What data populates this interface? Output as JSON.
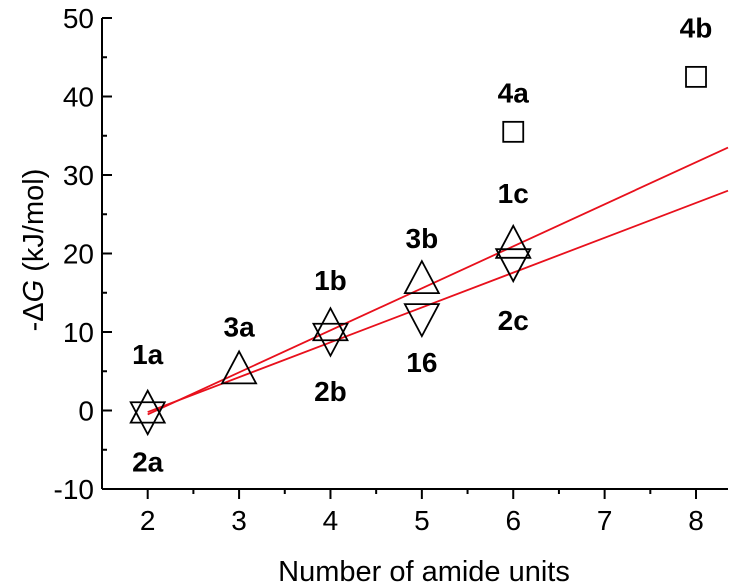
{
  "chart_data": {
    "type": "scatter",
    "title": "",
    "xlabel": "Number of amide units",
    "ylabel_prefix": "-Δ",
    "ylabel_var": "G",
    "ylabel_suffix": " (kJ/mol)",
    "xlim": [
      1.5,
      8.35
    ],
    "ylim": [
      -10,
      50
    ],
    "xticks": [
      2,
      3,
      4,
      5,
      6,
      7,
      8
    ],
    "xtick_labels": [
      "2",
      "3",
      "4",
      "5",
      "6",
      "7",
      "8"
    ],
    "yticks": [
      -10,
      0,
      10,
      20,
      30,
      40,
      50
    ],
    "ytick_labels": [
      "-10",
      "0",
      "10",
      "20",
      "30",
      "40",
      "50"
    ],
    "grid": false,
    "series": [
      {
        "marker": "triangle-up",
        "points": [
          {
            "x": 2,
            "y": 0.0
          },
          {
            "x": 3,
            "y": 5.0
          },
          {
            "x": 4,
            "y": 10.5
          },
          {
            "x": 5,
            "y": 16.5
          },
          {
            "x": 6,
            "y": 21.0
          }
        ]
      },
      {
        "marker": "triangle-down",
        "points": [
          {
            "x": 2,
            "y": -0.5
          },
          {
            "x": 4,
            "y": 9.5
          },
          {
            "x": 5,
            "y": 12.0
          },
          {
            "x": 6,
            "y": 19.0
          }
        ]
      },
      {
        "marker": "square",
        "points": [
          {
            "x": 6,
            "y": 35.5
          },
          {
            "x": 8,
            "y": 42.5
          }
        ]
      }
    ],
    "fit_lines": [
      {
        "color": "#e8101c",
        "x0": 2,
        "y0": -0.5,
        "x1": 8.35,
        "y1": 33.5
      },
      {
        "color": "#e8101c",
        "x0": 2,
        "y0": -0.2,
        "x1": 8.35,
        "y1": 28.0
      }
    ],
    "annotations": [
      {
        "text": "1a",
        "x": 2,
        "y": 7.2
      },
      {
        "text": "2a",
        "x": 2,
        "y": -6.5
      },
      {
        "text": "3a",
        "x": 3,
        "y": 10.7
      },
      {
        "text": "1b",
        "x": 4,
        "y": 16.6
      },
      {
        "text": "2b",
        "x": 4,
        "y": 2.5
      },
      {
        "text": "3b",
        "x": 5,
        "y": 22.0
      },
      {
        "text": "16",
        "x": 5,
        "y": 6.2
      },
      {
        "text": "1c",
        "x": 6,
        "y": 27.7
      },
      {
        "text": "2c",
        "x": 6,
        "y": 11.5
      },
      {
        "text": "4a",
        "x": 6,
        "y": 40.5
      },
      {
        "text": "4b",
        "x": 8,
        "y": 48.8
      }
    ]
  }
}
